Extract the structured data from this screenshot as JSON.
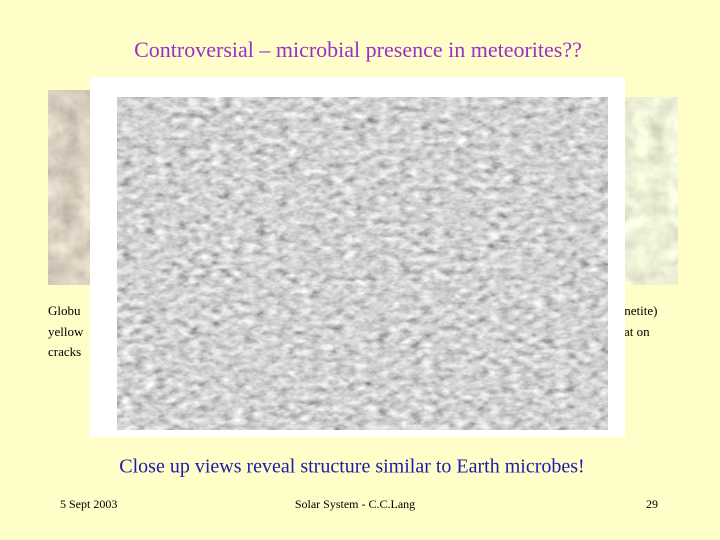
{
  "title": "Controversial – microbial presence in meteorites??",
  "left_caption": {
    "lines": [
      "Globu",
      "yellow",
      "cracks"
    ]
  },
  "right_caption": {
    "lines": [
      "agnetite)",
      "at on"
    ]
  },
  "caption": "Close up views reveal structure similar to Earth microbes!",
  "footer": {
    "date": "5 Sept 2003",
    "source": "Solar System - C.C.Lang",
    "page": "29"
  }
}
